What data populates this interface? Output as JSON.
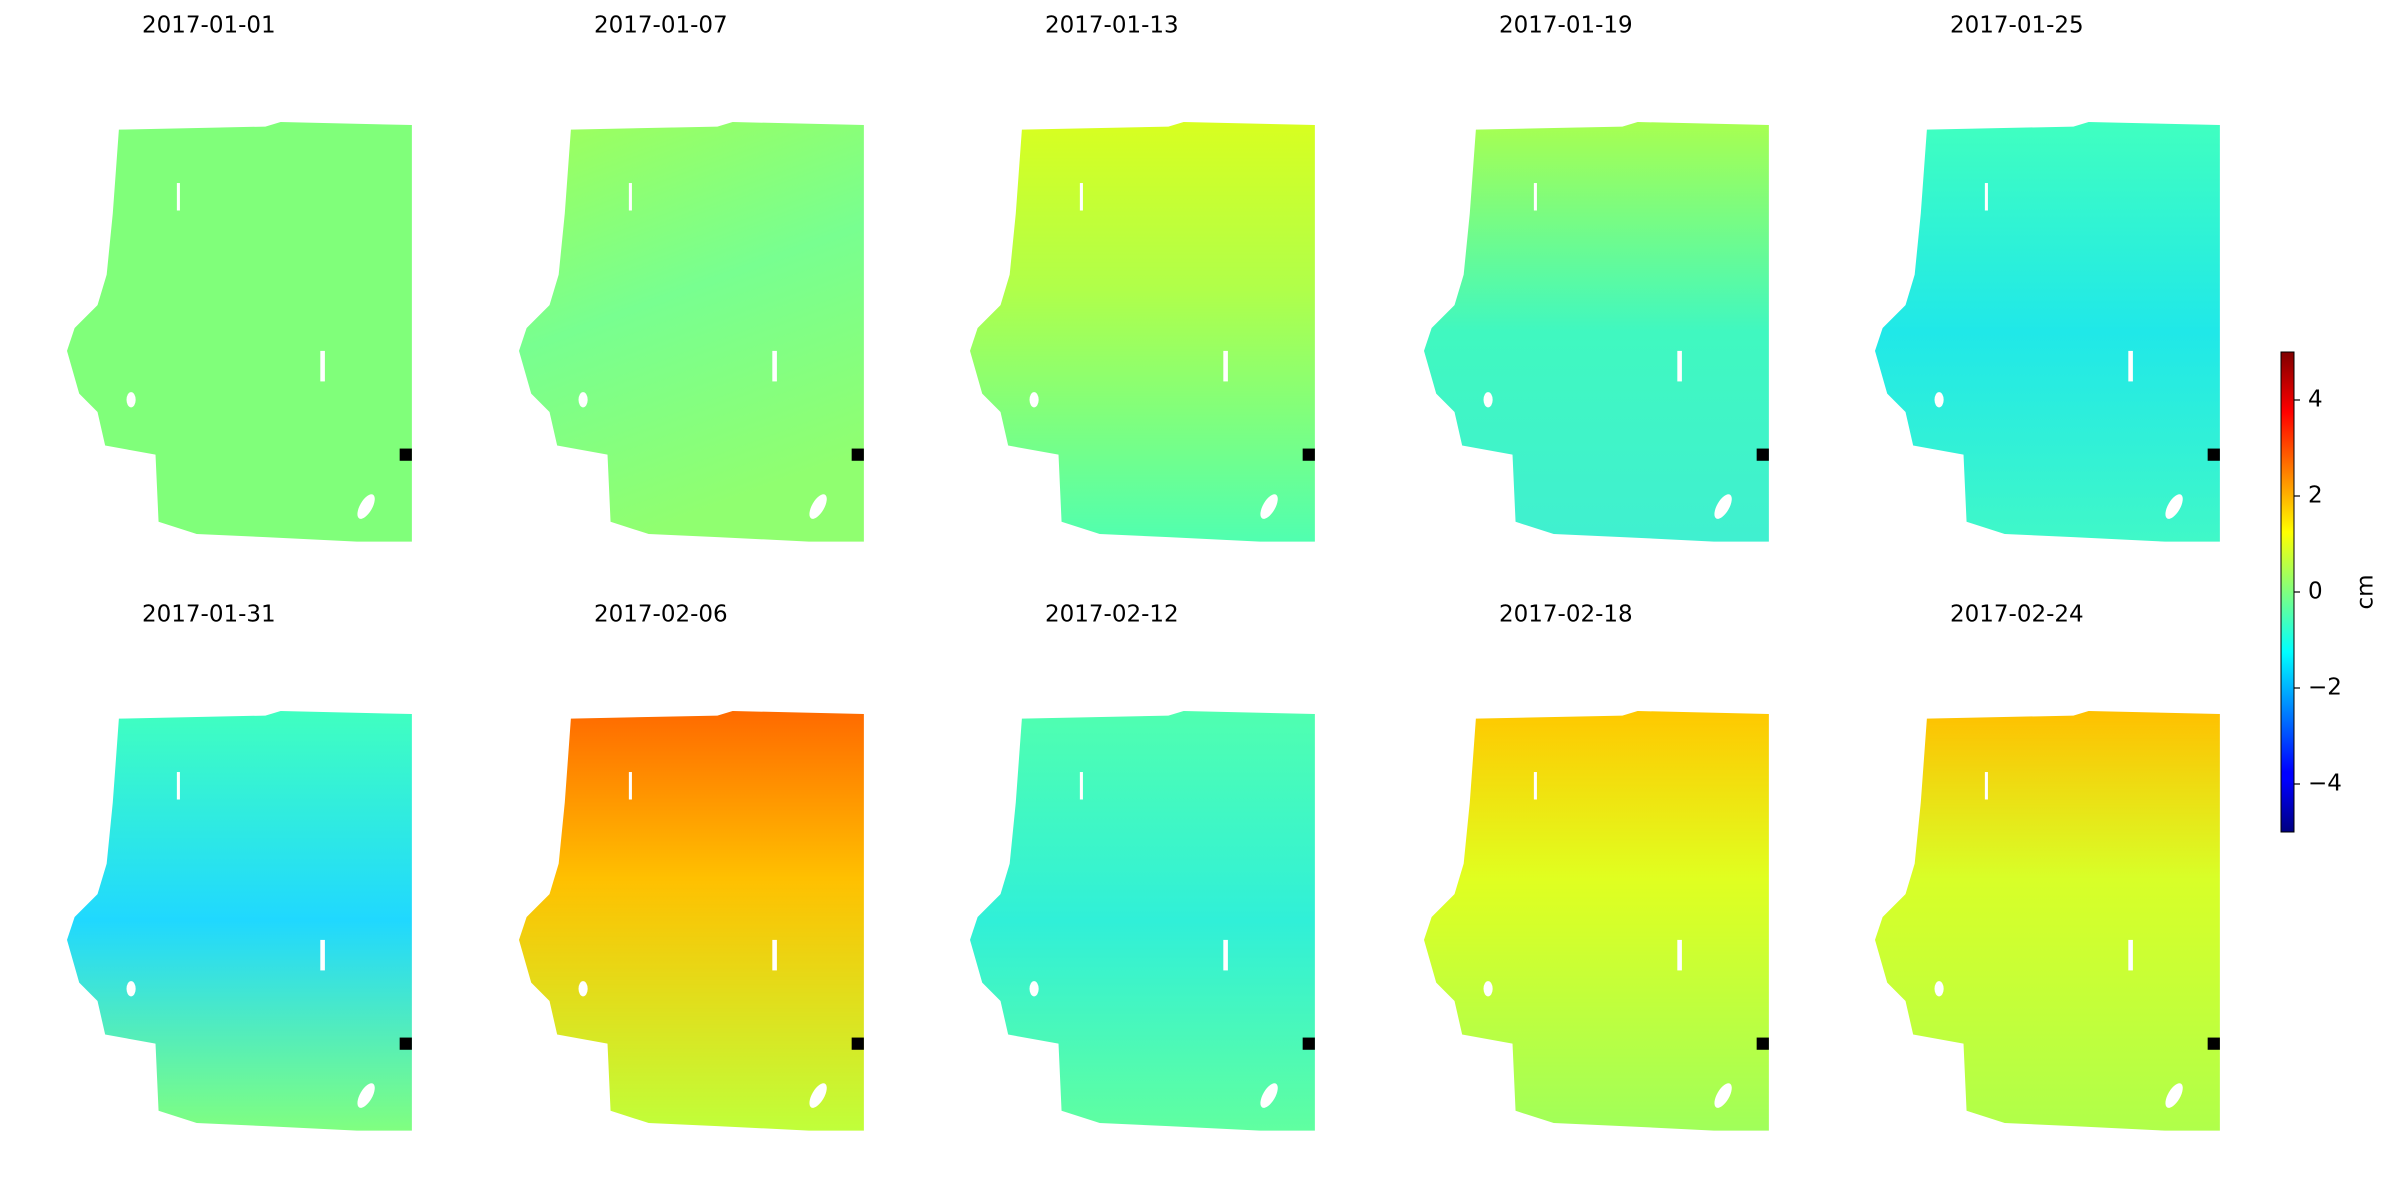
{
  "chart_data": {
    "type": "image-grid",
    "titles": [
      "2017-01-01",
      "2017-01-07",
      "2017-01-13",
      "2017-01-19",
      "2017-01-25",
      "2017-01-31",
      "2017-02-06",
      "2017-02-12",
      "2017-02-18",
      "2017-02-24"
    ],
    "colorbar": {
      "label": "cm",
      "colormap": "jet",
      "ylim": [
        -5,
        5
      ],
      "yticks": [
        {
          "value": -4,
          "label": "−4"
        },
        {
          "value": -2,
          "label": "−2"
        },
        0,
        2,
        4
      ]
    }
  }
}
